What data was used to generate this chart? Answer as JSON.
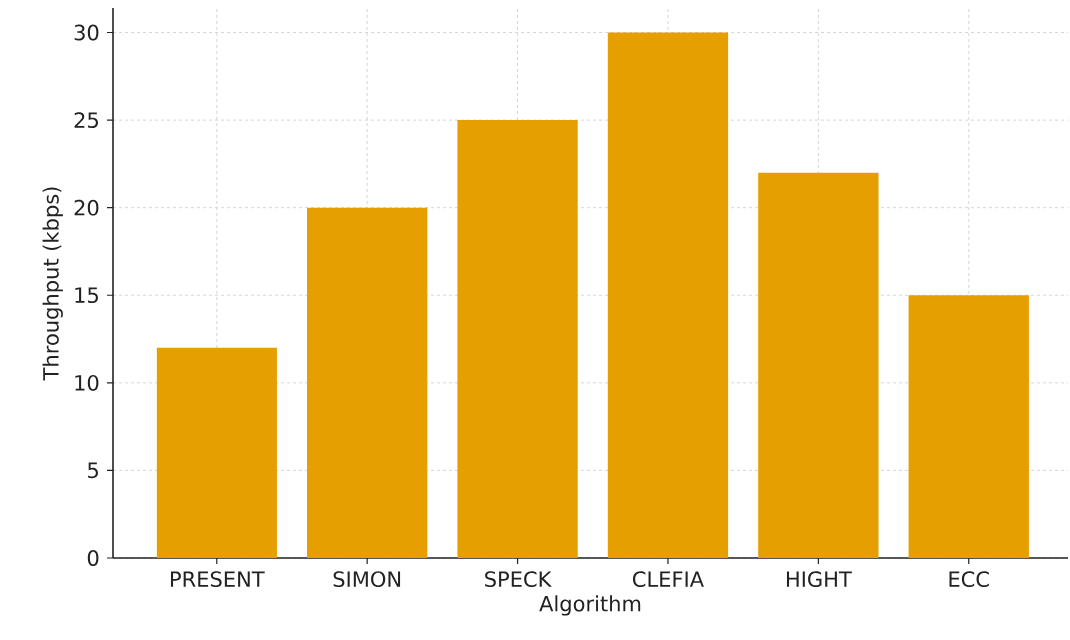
{
  "chart_data": {
    "type": "bar",
    "xlabel": "Algorithm",
    "ylabel": "Throughput (kbps)",
    "categories": [
      "PRESENT",
      "SIMON",
      "SPECK",
      "CLEFIA",
      "HIGHT",
      "ECC"
    ],
    "values": [
      12,
      20,
      25,
      30,
      22,
      15
    ],
    "color": "#e69f00",
    "ylim": [
      0,
      31.4
    ],
    "yticks": [
      0,
      5,
      10,
      15,
      20,
      25,
      30
    ],
    "grid": true
  }
}
